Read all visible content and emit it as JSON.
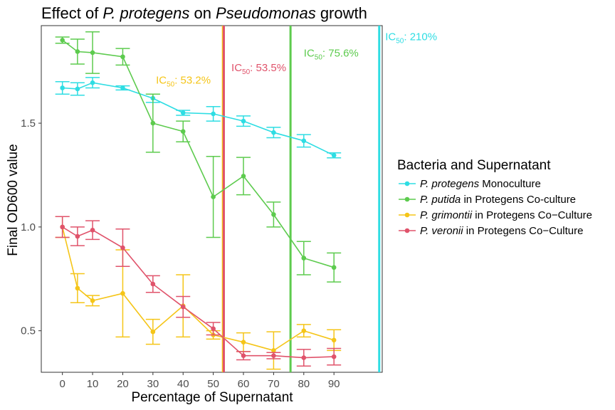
{
  "chart_data": {
    "type": "line",
    "title": {
      "prefix": "Effect of ",
      "italic1": "P. protegens",
      "middle": " on ",
      "italic2": "Pseudomonas",
      "suffix": " growth"
    },
    "xlabel": "Percentage of Supernatant",
    "ylabel": "Final OD600 value",
    "xlim": [
      -7,
      106
    ],
    "ylim": [
      0.3,
      1.97
    ],
    "x_ticks": [
      0,
      10,
      20,
      30,
      40,
      50,
      60,
      70,
      80,
      90
    ],
    "y_ticks": [
      0.5,
      1.0,
      1.5
    ],
    "y_tick_labels": [
      "0.5",
      "1.0",
      "1.5"
    ],
    "grid": false,
    "legend_position": "right",
    "legend": {
      "title": "Bacteria and Supernatant"
    },
    "series": [
      {
        "name_italic": "P. protegens",
        "name_rest": " Monoculture",
        "color": "#2EDDE3",
        "x": [
          0,
          5,
          10,
          20,
          30,
          40,
          50,
          60,
          70,
          80,
          90
        ],
        "y": [
          1.67,
          1.665,
          1.695,
          1.67,
          1.62,
          1.55,
          1.545,
          1.51,
          1.455,
          1.415,
          1.345
        ],
        "err": [
          0.03,
          0.03,
          0.025,
          0.01,
          0.02,
          0.012,
          0.035,
          0.025,
          0.025,
          0.03,
          0.012
        ]
      },
      {
        "name_italic": "P. putida",
        "name_rest": " in Protegens Co-culture",
        "color": "#5DCB4E",
        "x": [
          0,
          5,
          10,
          20,
          30,
          40,
          50,
          60,
          70,
          80,
          90
        ],
        "y": [
          1.9,
          1.845,
          1.84,
          1.82,
          1.5,
          1.46,
          1.145,
          1.245,
          1.06,
          0.85,
          0.805
        ],
        "err": [
          0.015,
          0.06,
          0.1,
          0.04,
          0.14,
          0.05,
          0.195,
          0.09,
          0.06,
          0.08,
          0.07
        ]
      },
      {
        "name_italic": "P. grimontii",
        "name_rest": " in Protegens Co−Culture",
        "color": "#F5C518",
        "x": [
          0,
          5,
          10,
          20,
          30,
          40,
          50,
          60,
          70,
          80,
          90
        ],
        "y": [
          1.0,
          0.705,
          0.645,
          0.68,
          0.495,
          0.62,
          0.48,
          0.445,
          0.405,
          0.5,
          0.455
        ],
        "err": [
          0.05,
          0.07,
          0.025,
          0.21,
          0.06,
          0.15,
          0.02,
          0.045,
          0.09,
          0.03,
          0.05
        ]
      },
      {
        "name_italic": "P. veronii",
        "name_rest": " in Protegens Co−Culture",
        "color": "#E0536B",
        "x": [
          0,
          5,
          10,
          20,
          30,
          40,
          50,
          60,
          70,
          80,
          90
        ],
        "y": [
          1.0,
          0.955,
          0.985,
          0.9,
          0.725,
          0.615,
          0.51,
          0.38,
          0.38,
          0.37,
          0.375
        ],
        "err": [
          0.05,
          0.045,
          0.045,
          0.09,
          0.04,
          0.05,
          0.03,
          0.02,
          0.015,
          0.04,
          0.04
        ]
      }
    ],
    "vlines": [
      {
        "x": 53.2,
        "color": "#F5C518",
        "label_pre": "IC",
        "label_sub": "50",
        "label_post": ": 53.2%",
        "label_x": 31,
        "label_y": 1.69
      },
      {
        "x": 53.5,
        "color": "#E0536B",
        "label_pre": "IC",
        "label_sub": "50",
        "label_post": ": 53.5%",
        "label_x": 56,
        "label_y": 1.75
      },
      {
        "x": 75.6,
        "color": "#5DCB4E",
        "label_pre": "IC",
        "label_sub": "50",
        "label_post": ": 75.6%",
        "label_x": 80,
        "label_y": 1.82
      },
      {
        "x": 105,
        "color": "#2EDDE3",
        "label_pre": "IC",
        "label_sub": "50",
        "label_post": ": 210%",
        "label_x": 107,
        "label_y": 1.9
      }
    ]
  }
}
